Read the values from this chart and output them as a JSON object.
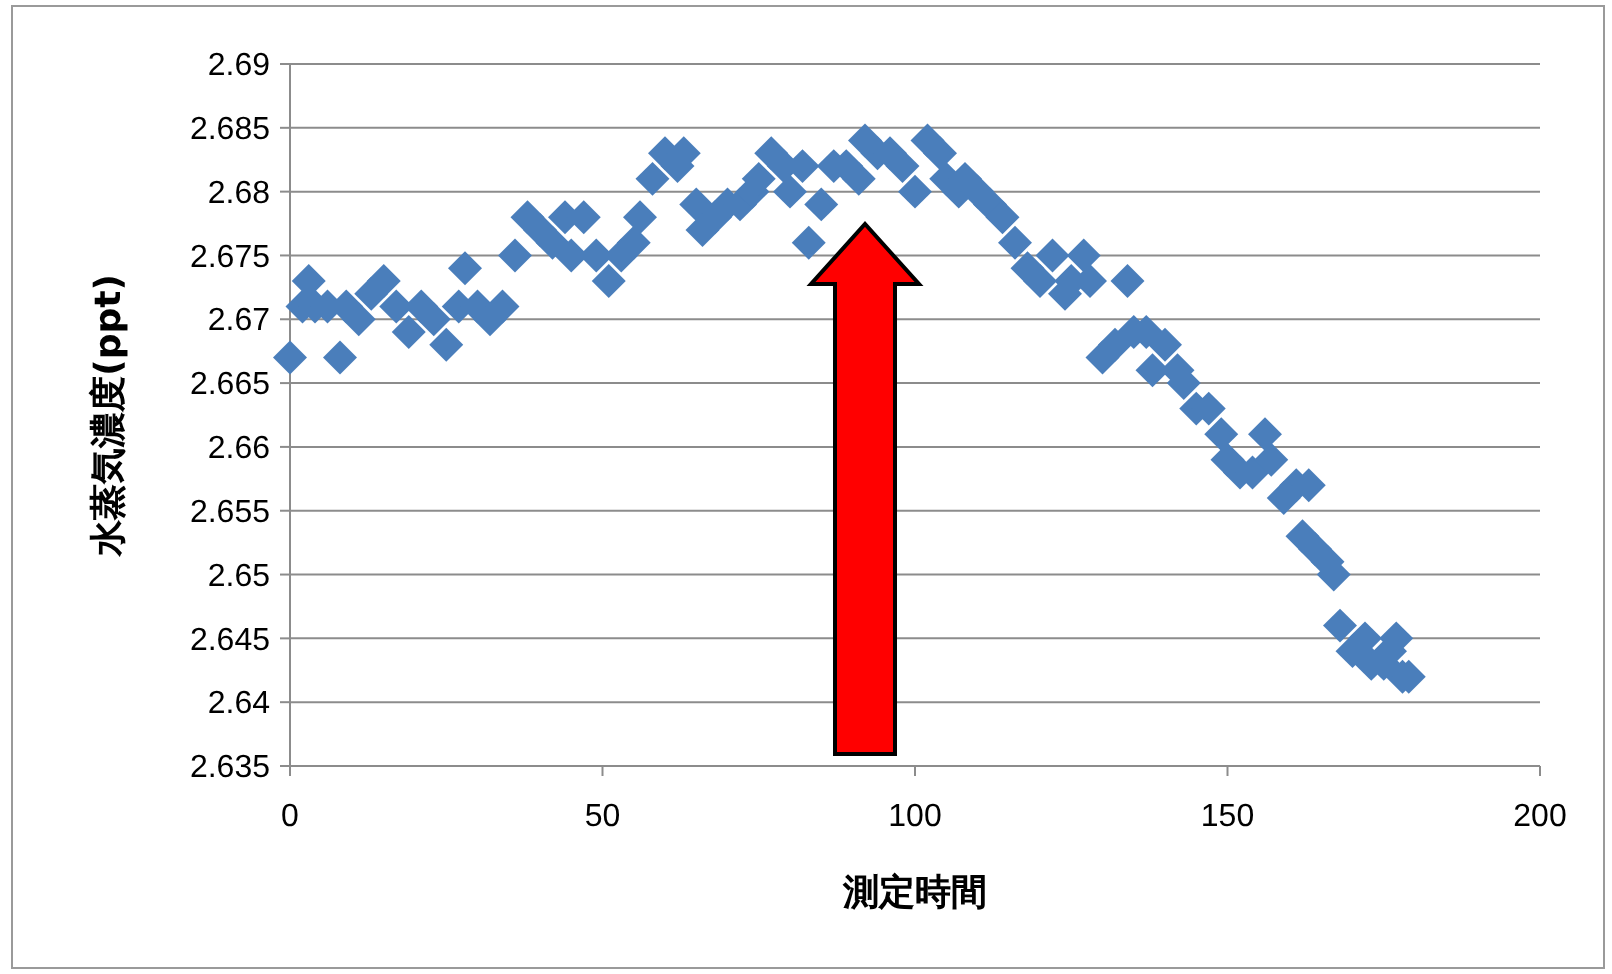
{
  "chart_data": {
    "type": "scatter",
    "xlabel": "測定時間",
    "ylabel": "水蒸気濃度(ppt)",
    "xlim": [
      0,
      200
    ],
    "xticks": [
      0,
      50,
      100,
      150,
      200
    ],
    "ylim": [
      2.635,
      2.69
    ],
    "yticks": [
      2.635,
      2.64,
      2.645,
      2.65,
      2.655,
      2.66,
      2.665,
      2.67,
      2.675,
      2.68,
      2.685,
      2.69
    ],
    "grid": "y",
    "marker": "diamond",
    "series": [
      {
        "color": "#4a7ebb",
        "x": [
          0,
          2,
          3,
          4,
          6,
          8,
          9,
          11,
          13,
          15,
          17,
          19,
          21,
          23,
          25,
          27,
          28,
          30,
          32,
          34,
          36,
          38,
          40,
          42,
          44,
          45,
          47,
          49,
          51,
          53,
          55,
          56,
          58,
          60,
          62,
          63,
          65,
          66,
          68,
          70,
          72,
          74,
          75,
          77,
          79,
          80,
          82,
          83,
          85,
          87,
          89,
          91,
          92,
          94,
          96,
          98,
          100,
          102,
          104,
          105,
          107,
          108,
          110,
          112,
          114,
          116,
          118,
          120,
          122,
          124,
          125,
          127,
          128,
          130,
          132,
          134,
          135,
          137,
          138,
          140,
          142,
          143,
          145,
          147,
          149,
          150,
          152,
          154,
          156,
          157,
          159,
          161,
          162,
          163,
          164,
          166,
          167,
          168,
          170,
          172,
          173,
          175,
          176,
          177,
          178,
          179
        ],
        "values": [
          2.667,
          2.671,
          2.673,
          2.671,
          2.671,
          2.667,
          2.671,
          2.67,
          2.672,
          2.673,
          2.671,
          2.669,
          2.671,
          2.67,
          2.668,
          2.671,
          2.674,
          2.671,
          2.67,
          2.671,
          2.675,
          2.678,
          2.677,
          2.676,
          2.678,
          2.675,
          2.678,
          2.675,
          2.673,
          2.675,
          2.676,
          2.678,
          2.681,
          2.683,
          2.682,
          2.683,
          2.679,
          2.677,
          2.678,
          2.679,
          2.679,
          2.68,
          2.681,
          2.683,
          2.682,
          2.68,
          2.682,
          2.676,
          2.679,
          2.682,
          2.682,
          2.681,
          2.684,
          2.683,
          2.683,
          2.682,
          2.68,
          2.684,
          2.683,
          2.681,
          2.68,
          2.681,
          2.68,
          2.679,
          2.678,
          2.676,
          2.674,
          2.673,
          2.675,
          2.672,
          2.673,
          2.675,
          2.673,
          2.667,
          2.668,
          2.673,
          2.669,
          2.669,
          2.666,
          2.668,
          2.666,
          2.665,
          2.663,
          2.663,
          2.661,
          2.659,
          2.658,
          2.658,
          2.661,
          2.659,
          2.656,
          2.657,
          2.653,
          2.657,
          2.652,
          2.651,
          2.65,
          2.646,
          2.644,
          2.645,
          2.643,
          2.643,
          2.644,
          2.645,
          2.642,
          2.642
        ]
      }
    ]
  }
}
